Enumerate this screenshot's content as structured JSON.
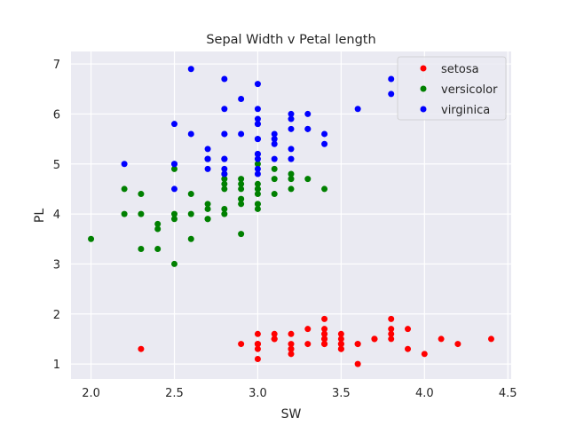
{
  "chart_data": {
    "type": "scatter",
    "title": "Sepal Width v Petal length",
    "xlabel": "SW",
    "ylabel": "PL",
    "xlim": [
      1.88,
      4.52
    ],
    "ylim": [
      0.7,
      7.25
    ],
    "xticks": [
      2.0,
      2.5,
      3.0,
      3.5,
      4.0,
      4.5
    ],
    "yticks": [
      1,
      2,
      3,
      4,
      5,
      6,
      7
    ],
    "xtick_labels": [
      "2.0",
      "2.5",
      "3.0",
      "3.5",
      "4.0",
      "4.5"
    ],
    "ytick_labels": [
      "1",
      "2",
      "3",
      "4",
      "5",
      "6",
      "7"
    ],
    "grid": true,
    "legend_position": "top-right",
    "background_color": "#eaeaf2",
    "series": [
      {
        "name": "setosa",
        "color": "#ff0000",
        "x": [
          3.5,
          3.0,
          3.2,
          3.1,
          3.6,
          3.9,
          3.4,
          3.4,
          2.9,
          3.1,
          3.7,
          3.4,
          3.0,
          3.0,
          4.0,
          4.4,
          3.9,
          3.5,
          3.8,
          3.8,
          3.4,
          3.7,
          3.6,
          3.3,
          3.4,
          3.0,
          3.4,
          3.5,
          3.4,
          3.2,
          3.1,
          3.4,
          4.1,
          4.2,
          3.1,
          3.2,
          3.5,
          3.6,
          3.0,
          3.4,
          3.5,
          2.3,
          3.2,
          3.5,
          3.8,
          3.0,
          3.8,
          3.2,
          3.7,
          3.3
        ],
        "y": [
          1.4,
          1.4,
          1.3,
          1.5,
          1.4,
          1.7,
          1.4,
          1.5,
          1.4,
          1.5,
          1.5,
          1.6,
          1.4,
          1.1,
          1.2,
          1.5,
          1.3,
          1.4,
          1.7,
          1.5,
          1.7,
          1.5,
          1.0,
          1.7,
          1.9,
          1.6,
          1.6,
          1.5,
          1.4,
          1.6,
          1.6,
          1.5,
          1.5,
          1.4,
          1.5,
          1.2,
          1.3,
          1.4,
          1.3,
          1.5,
          1.3,
          1.3,
          1.3,
          1.6,
          1.9,
          1.4,
          1.6,
          1.4,
          1.5,
          1.4
        ]
      },
      {
        "name": "versicolor",
        "color": "#008000",
        "x": [
          3.2,
          3.2,
          3.1,
          2.3,
          2.8,
          2.8,
          3.3,
          2.4,
          2.9,
          2.7,
          2.0,
          3.0,
          2.2,
          2.9,
          2.9,
          3.1,
          3.0,
          2.7,
          2.2,
          2.5,
          3.2,
          2.8,
          2.5,
          2.8,
          2.9,
          3.0,
          2.8,
          3.0,
          2.9,
          2.6,
          2.4,
          2.4,
          2.7,
          2.7,
          3.0,
          3.4,
          3.1,
          2.3,
          3.0,
          2.5,
          2.6,
          3.0,
          2.6,
          2.3,
          2.7,
          3.0,
          2.9,
          2.9,
          2.5,
          2.8
        ],
        "y": [
          4.7,
          4.5,
          4.9,
          4.0,
          4.6,
          4.5,
          4.7,
          3.3,
          4.6,
          3.9,
          3.5,
          4.2,
          4.0,
          4.7,
          3.6,
          4.4,
          4.5,
          4.1,
          4.5,
          3.9,
          4.8,
          4.0,
          4.9,
          4.7,
          4.3,
          4.4,
          4.8,
          5.0,
          4.5,
          3.5,
          3.8,
          3.7,
          3.9,
          5.1,
          4.5,
          4.5,
          4.7,
          4.4,
          4.1,
          4.0,
          4.4,
          4.6,
          4.0,
          3.3,
          4.2,
          4.2,
          4.2,
          4.3,
          3.0,
          4.1
        ]
      },
      {
        "name": "virginica",
        "color": "#0000ff",
        "x": [
          3.3,
          2.7,
          3.0,
          2.9,
          3.0,
          3.0,
          2.5,
          2.9,
          2.5,
          3.6,
          3.2,
          2.7,
          3.0,
          2.5,
          2.8,
          3.2,
          3.0,
          3.8,
          2.6,
          2.2,
          3.2,
          2.8,
          2.8,
          2.7,
          3.3,
          3.2,
          2.8,
          3.0,
          2.8,
          3.0,
          2.8,
          3.8,
          2.8,
          2.8,
          2.6,
          3.0,
          3.4,
          3.1,
          3.0,
          3.1,
          3.1,
          3.1,
          2.7,
          3.2,
          3.3,
          3.0,
          2.5,
          3.0,
          3.4,
          3.0
        ],
        "y": [
          6.0,
          5.1,
          5.9,
          5.6,
          5.8,
          6.6,
          4.5,
          6.3,
          5.8,
          6.1,
          5.1,
          5.3,
          5.5,
          5.0,
          5.1,
          5.3,
          5.5,
          6.7,
          6.9,
          5.0,
          5.7,
          4.9,
          6.7,
          4.9,
          5.7,
          6.0,
          4.8,
          4.9,
          5.6,
          5.8,
          6.1,
          6.4,
          5.6,
          5.1,
          5.6,
          6.1,
          5.6,
          5.5,
          4.8,
          5.4,
          5.6,
          5.1,
          5.1,
          5.9,
          5.7,
          5.2,
          5.0,
          5.2,
          5.4,
          5.1
        ]
      }
    ]
  }
}
